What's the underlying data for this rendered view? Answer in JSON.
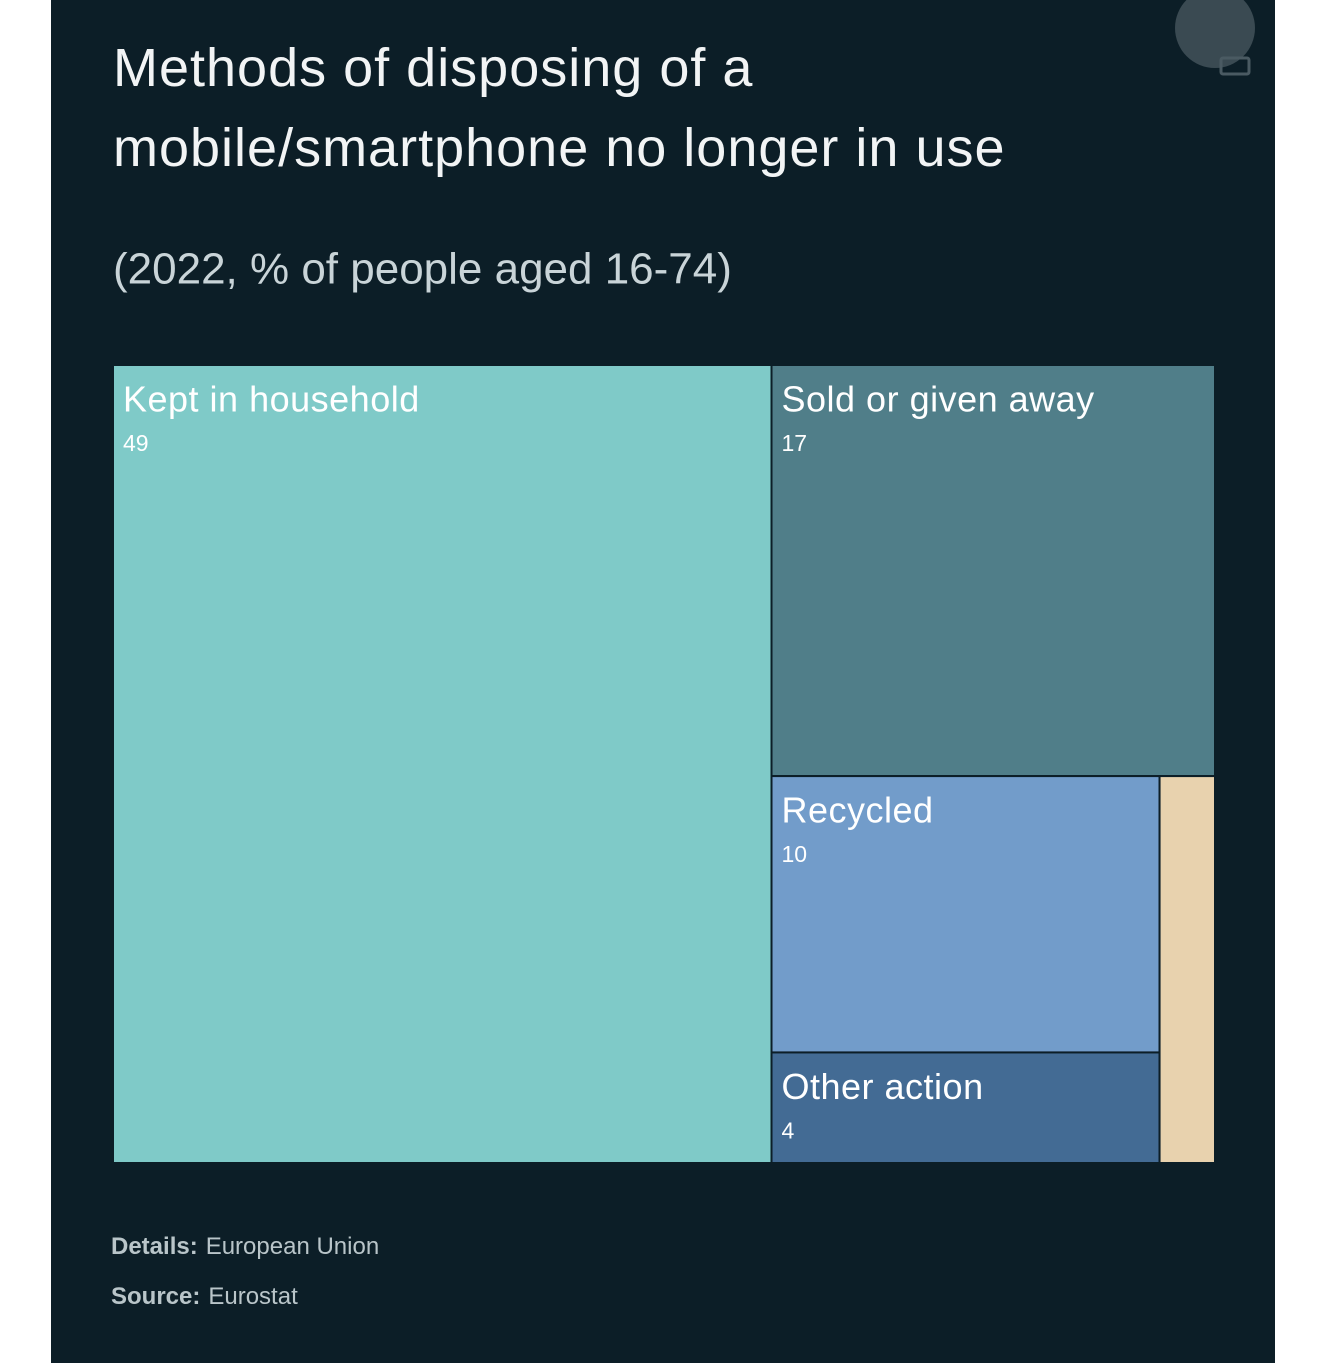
{
  "chart_data": {
    "type": "treemap",
    "title": "Methods of disposing of a mobile/smartphone no longer in use",
    "subtitle": "(2022, % of people aged 16-74)",
    "categories": [
      "Kept in household",
      "Sold or given away",
      "Recycled",
      "Other action",
      null
    ],
    "values": [
      49,
      17,
      10,
      4,
      2
    ],
    "colors": [
      "#7fcac8",
      "#507e89",
      "#729cca",
      "#436b94",
      "#e8d2ae"
    ],
    "details_label": "Details:",
    "details": "European Union",
    "source_label": "Source:",
    "source": "Eurostat"
  }
}
